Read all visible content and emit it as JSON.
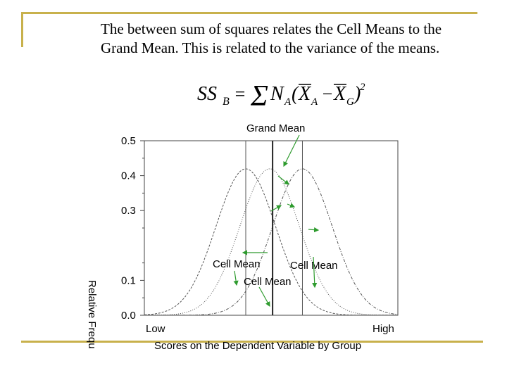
{
  "slide": {
    "body_text": "The between sum of squares relates the Cell Means to the Grand Mean.  This is related to the variance of the means.",
    "formula": "SS_B = Σ N_A (X̄_A − X̄_G)²"
  },
  "colors": {
    "accent_rule": "#c8b14c",
    "curve": "#555555",
    "arrow": "#2e9b2e",
    "axis": "#444444"
  },
  "chart_data": {
    "type": "line",
    "title": "",
    "xlabel": "Scores on the Dependent Variable by Group",
    "ylabel": "Relative Frequ",
    "ylim": [
      0,
      0.5
    ],
    "yticks": [
      "0.0",
      "0.1",
      "0.3",
      "0.4",
      "0.5"
    ],
    "xticks": [
      "Low",
      "High"
    ],
    "series": [
      {
        "mean": 3.4,
        "sd": 1.0,
        "peak": 0.42
      },
      {
        "mean": 4.2,
        "sd": 1.0,
        "peak": 0.42
      },
      {
        "mean": 5.3,
        "sd": 1.0,
        "peak": 0.42
      }
    ],
    "x_range": [
      0,
      8.5
    ],
    "vertical_lines": [
      {
        "x": 3.4,
        "style": "thin"
      },
      {
        "x": 4.3,
        "style": "bold"
      },
      {
        "x": 5.3,
        "style": "thin"
      }
    ],
    "annotations": {
      "grand_mean": "Grand Mean",
      "cell_mean_left": "Cell Mean",
      "cell_mean_right": "Cell Mean",
      "cell_mean_center": "Cell Mean"
    }
  }
}
